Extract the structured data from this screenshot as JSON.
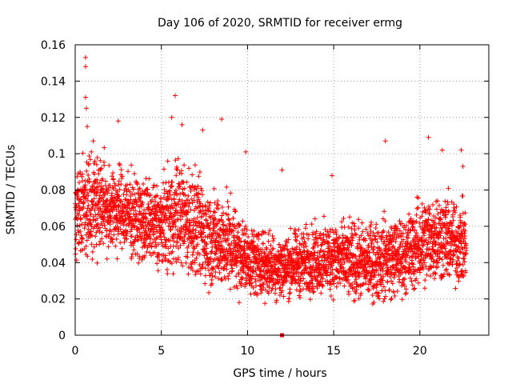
{
  "chart_data": {
    "type": "scatter",
    "title": "Day 106 of 2020, SRMTID for receiver ermg",
    "xlabel": "GPS time / hours",
    "ylabel": "SRMTID / TECUs",
    "xlim": [
      0,
      24
    ],
    "ylim": [
      0,
      0.16
    ],
    "xticks": [
      0,
      5,
      10,
      15,
      20
    ],
    "xtick_labels": [
      "0",
      "5",
      "10",
      "15",
      "20"
    ],
    "yticks": [
      0,
      0.02,
      0.04,
      0.06,
      0.08,
      0.1,
      0.12,
      0.14,
      0.16
    ],
    "ytick_labels": [
      "0",
      "0.02",
      "0.04",
      "0.06",
      "0.08",
      "0.1",
      "0.12",
      "0.14",
      "0.16"
    ],
    "grid": true,
    "marker": "plus",
    "color": "#ff0000",
    "series": [
      {
        "name": "SRMTID",
        "note": "Dense scatter of plus markers (approx. 4000 points); trend summarised by hourly band below",
        "band": [
          {
            "hour": 0,
            "low": 0.035,
            "high": 0.1
          },
          {
            "hour": 1,
            "low": 0.04,
            "high": 0.11
          },
          {
            "hour": 2,
            "low": 0.04,
            "high": 0.1
          },
          {
            "hour": 3,
            "low": 0.04,
            "high": 0.095
          },
          {
            "hour": 4,
            "low": 0.035,
            "high": 0.09
          },
          {
            "hour": 5,
            "low": 0.03,
            "high": 0.09
          },
          {
            "hour": 6,
            "low": 0.03,
            "high": 0.105
          },
          {
            "hour": 7,
            "low": 0.025,
            "high": 0.095
          },
          {
            "hour": 8,
            "low": 0.02,
            "high": 0.085
          },
          {
            "hour": 9,
            "low": 0.02,
            "high": 0.08
          },
          {
            "hour": 10,
            "low": 0.018,
            "high": 0.065
          },
          {
            "hour": 11,
            "low": 0.018,
            "high": 0.06
          },
          {
            "hour": 12,
            "low": 0.015,
            "high": 0.06
          },
          {
            "hour": 13,
            "low": 0.018,
            "high": 0.062
          },
          {
            "hour": 14,
            "low": 0.018,
            "high": 0.065
          },
          {
            "hour": 15,
            "low": 0.018,
            "high": 0.068
          },
          {
            "hour": 16,
            "low": 0.015,
            "high": 0.065
          },
          {
            "hour": 17,
            "low": 0.015,
            "high": 0.065
          },
          {
            "hour": 18,
            "low": 0.015,
            "high": 0.07
          },
          {
            "hour": 19,
            "low": 0.018,
            "high": 0.068
          },
          {
            "hour": 20,
            "low": 0.02,
            "high": 0.08
          },
          {
            "hour": 21,
            "low": 0.025,
            "high": 0.085
          },
          {
            "hour": 22,
            "low": 0.022,
            "high": 0.08
          },
          {
            "hour": 22.7,
            "low": 0.025,
            "high": 0.075
          }
        ],
        "outliers": [
          {
            "x": 0.6,
            "y": 0.153
          },
          {
            "x": 0.6,
            "y": 0.148
          },
          {
            "x": 0.6,
            "y": 0.131
          },
          {
            "x": 0.65,
            "y": 0.125
          },
          {
            "x": 0.7,
            "y": 0.115
          },
          {
            "x": 2.5,
            "y": 0.118
          },
          {
            "x": 5.8,
            "y": 0.132
          },
          {
            "x": 5.6,
            "y": 0.12
          },
          {
            "x": 6.2,
            "y": 0.116
          },
          {
            "x": 8.5,
            "y": 0.119
          },
          {
            "x": 7.4,
            "y": 0.113
          },
          {
            "x": 9.9,
            "y": 0.101
          },
          {
            "x": 12.0,
            "y": 0.091
          },
          {
            "x": 14.9,
            "y": 0.088
          },
          {
            "x": 18.0,
            "y": 0.107
          },
          {
            "x": 20.5,
            "y": 0.109
          },
          {
            "x": 21.3,
            "y": 0.102
          },
          {
            "x": 22.4,
            "y": 0.102
          },
          {
            "x": 22.5,
            "y": 0.093
          }
        ]
      },
      {
        "name": "marker at zero",
        "points": [
          {
            "x": 12.0,
            "y": 0.0
          }
        ]
      }
    ]
  }
}
